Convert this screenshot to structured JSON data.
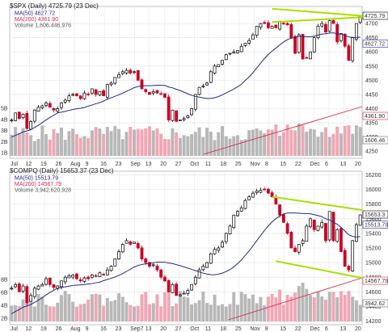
{
  "colors": {
    "up_candle": "#000000",
    "down_candle": "#cc0022",
    "ma50": "#1f2a8c",
    "ma200": "#d42a4a",
    "volume_up": "#b8b8b8",
    "volume_down": "#f2a6b4",
    "trendline": "#a8e000",
    "grid": "#e2e2e2"
  },
  "chart_data": [
    {
      "type": "candlestick",
      "title": "$SPX (Daily) 4725.79 (23 Dec)",
      "legend": [
        {
          "name": "MA(50)",
          "text": "MA(50) 4627.72",
          "color": "#1f2a8c"
        },
        {
          "name": "MA(200)",
          "text": "MA(200) 4361.90",
          "color": "#d42a4a"
        },
        {
          "name": "Volume",
          "text": "Volume 1,606,446,976",
          "color": "#888888"
        }
      ],
      "ylim": [
        4225,
        4760
      ],
      "y_ticks": [
        "4700",
        "4650",
        "4600",
        "4550",
        "4500",
        "4450",
        "4400",
        "4350",
        "4300",
        "4250"
      ],
      "last_value_labels": [
        "4725.79",
        "4627.72",
        "4361.90",
        "1606.46"
      ],
      "volume_ticks": [
        "5B",
        "4B",
        "3B",
        "2B",
        "1B"
      ],
      "x_ticks": [
        "Jul",
        "12",
        "19",
        "26",
        "Aug",
        "9",
        "16",
        "23",
        "Sep",
        "13",
        "20",
        "27",
        "Oct",
        "11",
        "18",
        "25",
        "Nov",
        "8",
        "15",
        "22",
        "Dec",
        "6",
        "13",
        "20"
      ],
      "close_series_approx": [
        4360,
        4385,
        4365,
        4380,
        4330,
        4355,
        4395,
        4405,
        4410,
        4420,
        4405,
        4395,
        4400,
        4420,
        4430,
        4445,
        4450,
        4445,
        4435,
        4455,
        4450,
        4470,
        4450,
        4460,
        4445,
        4485,
        4490,
        4510,
        4520,
        4530,
        4535,
        4525,
        4530,
        4500,
        4470,
        4460,
        4450,
        4460,
        4455,
        4450,
        4440,
        4360,
        4395,
        4355,
        4360,
        4365,
        4375,
        4400,
        4450,
        4475,
        4480,
        4490,
        4530,
        4550,
        4555,
        4570,
        4590,
        4595,
        4600,
        4605,
        4620,
        4630,
        4640,
        4660,
        4690,
        4700,
        4700,
        4685,
        4690,
        4685,
        4705,
        4700,
        4695,
        4650,
        4595,
        4660,
        4575,
        4580,
        4600,
        4650,
        4690,
        4700,
        4670,
        4710,
        4700,
        4635,
        4665,
        4620,
        4570,
        4650,
        4700,
        4725
      ],
      "trendlines": "two converging lime lines near 4700-4750",
      "grid": true
    },
    {
      "type": "candlestick",
      "title": "$COMPQ (Daily) 15653.37 (23 Dec)",
      "legend": [
        {
          "name": "MA(50)",
          "text": "MA(50) 15513.79",
          "color": "#1f2a8c"
        },
        {
          "name": "MA(200)",
          "text": "MA(200) 14567.79",
          "color": "#d42a4a"
        },
        {
          "name": "Volume",
          "text": "Volume 3,942,620,928",
          "color": "#888888"
        }
      ],
      "ylim": [
        14150,
        16250
      ],
      "y_ticks": [
        "16200",
        "16000",
        "15800",
        "15600",
        "15400",
        "15200",
        "15000",
        "14800",
        "14600",
        "14400",
        "14200"
      ],
      "last_value_labels": [
        "15653.3",
        "15513.79",
        "14567.79",
        "3942.62"
      ],
      "volume_ticks": [
        "8B",
        "6B",
        "4B",
        "2B"
      ],
      "x_ticks": [
        "Jul",
        "12",
        "19",
        "26",
        "Aug",
        "9",
        "16",
        "23",
        "Sep7",
        "13",
        "20",
        "27",
        "Oct",
        "11",
        "18",
        "25",
        "Nov",
        "8",
        "15",
        "22",
        "Dec",
        "6",
        "13",
        "20"
      ],
      "close_series_approx": [
        14650,
        14700,
        14600,
        14680,
        14450,
        14550,
        14650,
        14680,
        14700,
        14780,
        14700,
        14660,
        14680,
        14750,
        14800,
        14820,
        14830,
        14780,
        14750,
        14790,
        14780,
        14830,
        14820,
        14860,
        14840,
        14900,
        14950,
        15050,
        15150,
        15250,
        15300,
        15250,
        15280,
        15200,
        15050,
        15000,
        14950,
        14970,
        14900,
        14800,
        14750,
        14600,
        14700,
        14550,
        14560,
        14580,
        14620,
        14700,
        14800,
        14900,
        14950,
        15000,
        15120,
        15180,
        15200,
        15280,
        15400,
        15500,
        15650,
        15700,
        15750,
        15850,
        15900,
        15950,
        15980,
        15990,
        16000,
        15950,
        15900,
        15800,
        15650,
        15550,
        15400,
        15200,
        15150,
        15250,
        15300,
        15500,
        15600,
        15450,
        15500,
        15550,
        15300,
        15700,
        15300,
        15450,
        15150,
        14950,
        14900,
        15300,
        15520,
        15653
      ],
      "trendlines": "upper lime line ~15900 descending to 15720; lower lime line ~15020 descending to 14800",
      "grid": true
    }
  ]
}
